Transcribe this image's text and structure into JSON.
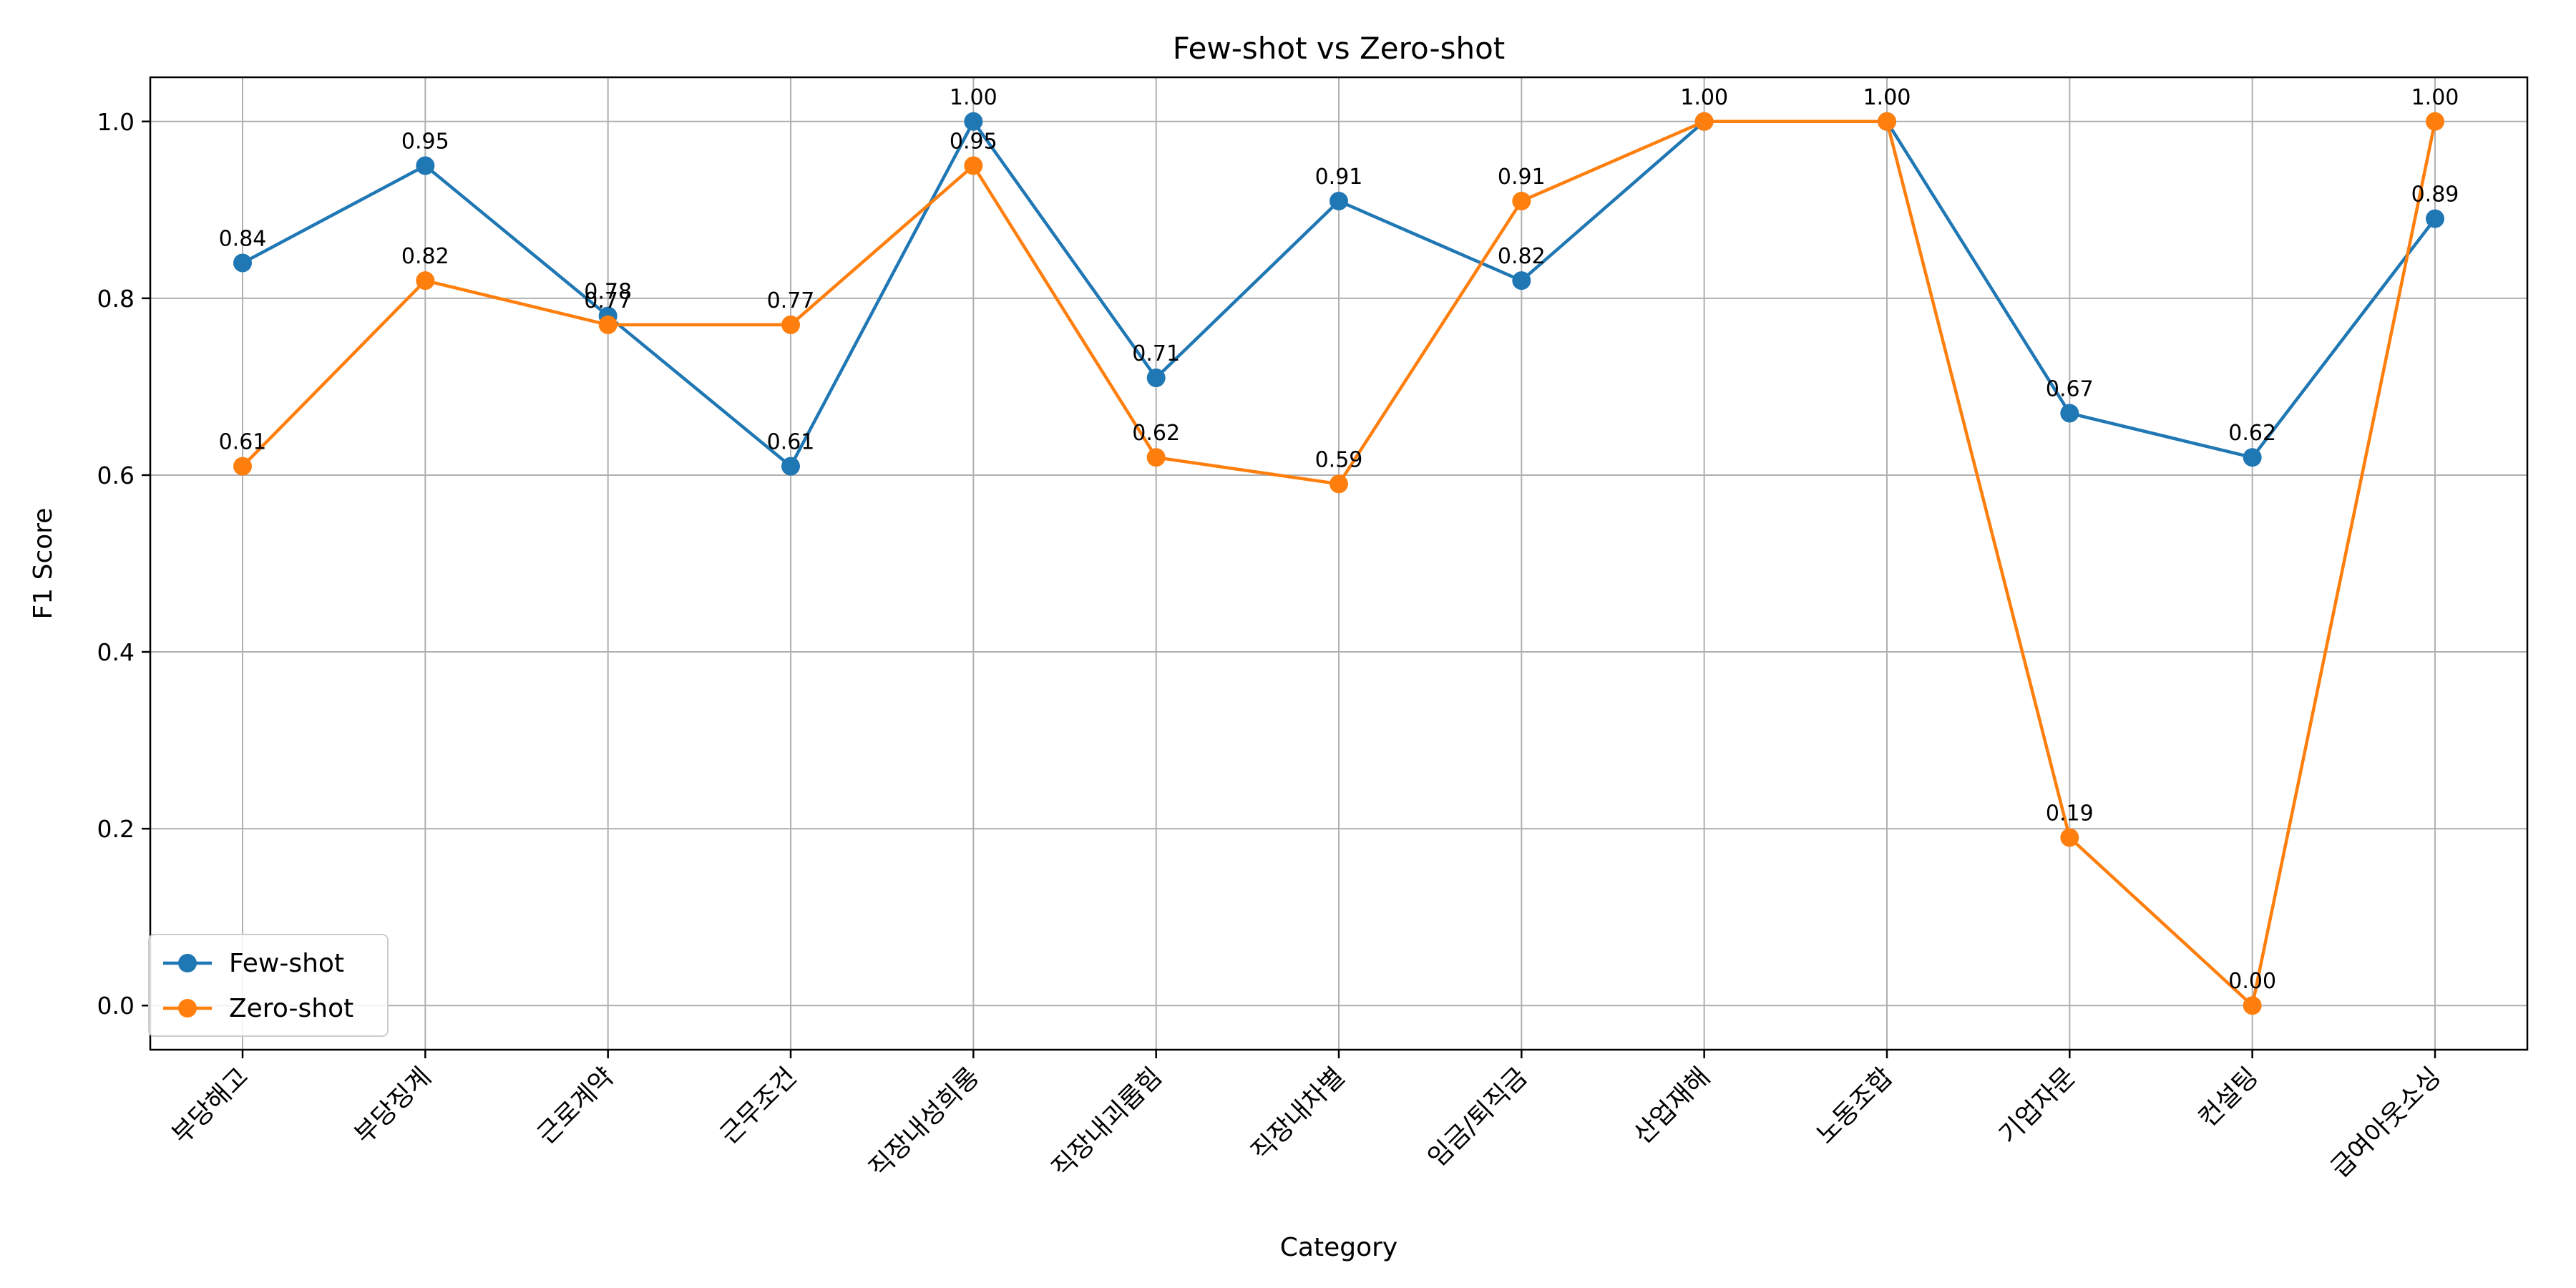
{
  "chart_data": {
    "type": "line",
    "title": "Few-shot vs Zero-shot",
    "xlabel": "Category",
    "ylabel": "F1 Score",
    "categories": [
      "부당해고",
      "부당징계",
      "근로계약",
      "근무조건",
      "직장내성희롱",
      "직장내괴롭힘",
      "직장내차별",
      "임금/퇴직금",
      "산업재해",
      "노동조합",
      "기업자문",
      "컨설팅",
      "급여아웃소싱"
    ],
    "series": [
      {
        "name": "Few-shot",
        "color": "#1f77b4",
        "values": [
          0.84,
          0.95,
          0.78,
          0.61,
          1.0,
          0.71,
          0.91,
          0.82,
          1.0,
          1.0,
          0.67,
          0.62,
          0.89
        ],
        "labels": [
          "0.84",
          "0.95",
          "0.78",
          "0.61",
          "1.00",
          "0.71",
          "0.91",
          "0.82",
          "1.00",
          "1.00",
          "0.67",
          "0.62",
          "0.89"
        ]
      },
      {
        "name": "Zero-shot",
        "color": "#ff7f0e",
        "values": [
          0.61,
          0.82,
          0.77,
          0.77,
          0.95,
          0.62,
          0.59,
          0.91,
          1.0,
          1.0,
          0.19,
          0.0,
          1.0
        ],
        "labels": [
          "0.61",
          "0.82",
          "0.77",
          "0.77",
          "0.95",
          "0.62",
          "0.59",
          "0.91",
          "1.00",
          "1.00",
          "0.19",
          "0.00",
          "1.00"
        ]
      }
    ],
    "ylim": [
      -0.05,
      1.05
    ],
    "yticks": [
      0.0,
      0.2,
      0.4,
      0.6,
      0.8,
      1.0
    ],
    "ytick_labels": [
      "0.0",
      "0.2",
      "0.4",
      "0.6",
      "0.8",
      "1.0"
    ],
    "grid": true,
    "legend_position": "lower-left"
  }
}
